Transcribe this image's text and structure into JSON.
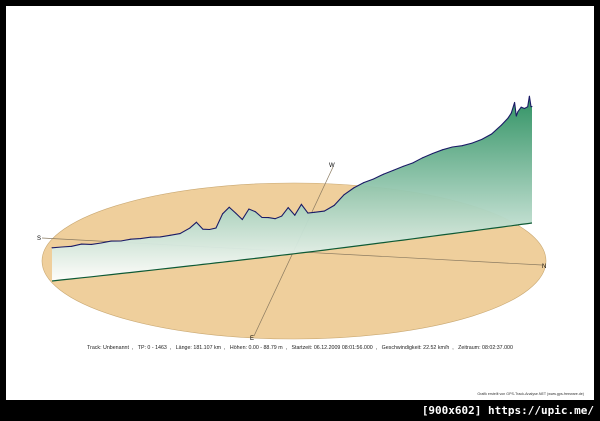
{
  "chart_data": {
    "type": "area",
    "series": [
      {
        "values": [
          [
            0,
            6.3
          ],
          [
            30,
            6.1
          ],
          [
            60,
            5.8
          ],
          [
            90,
            6.8
          ],
          [
            120,
            5.6
          ],
          [
            150,
            5.9
          ],
          [
            180,
            6.6
          ],
          [
            210,
            5.7
          ],
          [
            240,
            6.4
          ],
          [
            270,
            6.0
          ],
          [
            300,
            6.2
          ],
          [
            330,
            5.5
          ],
          [
            360,
            6.0
          ],
          [
            390,
            6.5
          ],
          [
            420,
            10.4
          ],
          [
            440,
            14.8
          ],
          [
            460,
            8.1
          ],
          [
            480,
            7.2
          ],
          [
            500,
            7.8
          ],
          [
            520,
            19.6
          ],
          [
            540,
            24.8
          ],
          [
            560,
            18.9
          ],
          [
            580,
            12.6
          ],
          [
            600,
            21.2
          ],
          [
            620,
            18.1
          ],
          [
            640,
            12.4
          ],
          [
            660,
            11.6
          ],
          [
            680,
            9.9
          ],
          [
            700,
            11.5
          ],
          [
            720,
            18.3
          ],
          [
            740,
            10.9
          ],
          [
            760,
            19.7
          ],
          [
            780,
            11.4
          ],
          [
            800,
            11.4
          ],
          [
            830,
            11.4
          ],
          [
            860,
            15.3
          ],
          [
            890,
            23.5
          ],
          [
            920,
            28.5
          ],
          [
            950,
            32.0
          ],
          [
            980,
            34.1
          ],
          [
            1010,
            37.2
          ],
          [
            1040,
            39.4
          ],
          [
            1070,
            41.8
          ],
          [
            1100,
            43.8
          ],
          [
            1130,
            47.2
          ],
          [
            1160,
            49.8
          ],
          [
            1190,
            51.9
          ],
          [
            1220,
            53.2
          ],
          [
            1250,
            53.2
          ],
          [
            1280,
            54.3
          ],
          [
            1310,
            56.4
          ],
          [
            1340,
            60.0
          ],
          [
            1370,
            66.7
          ],
          [
            1390,
            72.0
          ],
          [
            1400,
            76.1
          ],
          [
            1410,
            85.0
          ],
          [
            1415,
            72.8
          ],
          [
            1420,
            76.6
          ],
          [
            1430,
            80.0
          ],
          [
            1440,
            78.5
          ],
          [
            1450,
            79.7
          ],
          [
            1455,
            88.8
          ],
          [
            1460,
            79.4
          ],
          [
            1463,
            79.3
          ]
        ]
      }
    ],
    "compass": [
      "S",
      "W",
      "N",
      "E"
    ],
    "fill_colors": {
      "ground": "#efcf9c",
      "elevation_top": "#2a8f5f",
      "elevation_bottom": "#ffffff",
      "profile_line": "#1a1a66"
    }
  },
  "info": {
    "track": "Track: Unbenannt",
    "tp": "TP: 0 - 1463",
    "length": "Länge: 181.107 km",
    "heights": "Höhen: 0.00 - 88.79 m",
    "start": "Startzeit: 06.12.2009 08:01:56.000",
    "speed": "Geschwindigkeit: 22.52 km/h",
    "duration": "Zeitraum: 08:02:37.000"
  },
  "credit": "Grafik erstellt von GPS-Track-Analyse.NET (www.gps-freeware.de)",
  "watermark": "[900x602] https://upic.me/"
}
